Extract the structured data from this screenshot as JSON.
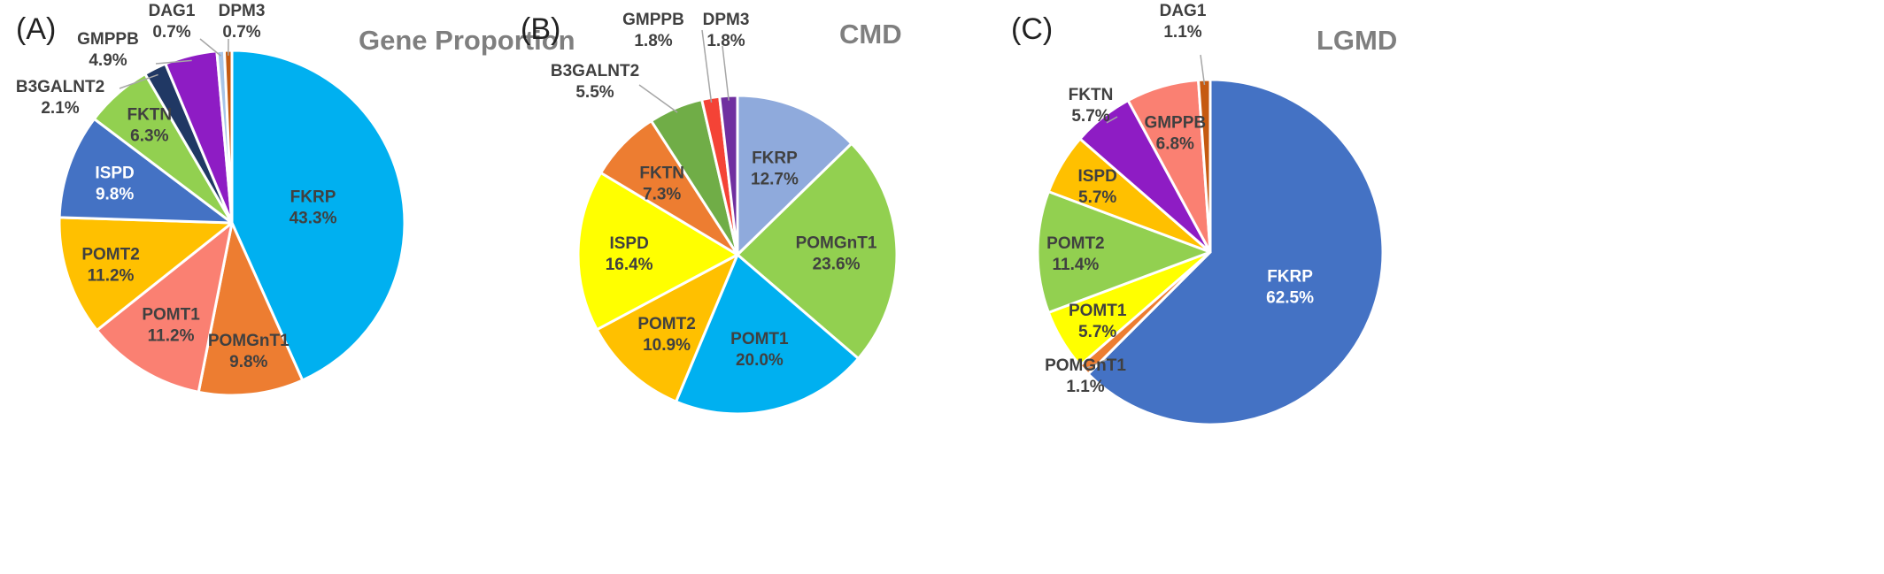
{
  "chart_data": [
    {
      "type": "pie",
      "panel": "(A)",
      "title": "Gene Proportion",
      "slices": [
        {
          "label": "FKRP",
          "value": 43.3,
          "color": "#00b0f0"
        },
        {
          "label": "POMGnT1",
          "value": 9.8,
          "color": "#ed7d31"
        },
        {
          "label": "POMT1",
          "value": 11.2,
          "color": "#fa8072"
        },
        {
          "label": "POMT2",
          "value": 11.2,
          "color": "#ffc000"
        },
        {
          "label": "ISPD",
          "value": 9.8,
          "color": "#4472c4"
        },
        {
          "label": "FKTN",
          "value": 6.3,
          "color": "#92d050"
        },
        {
          "label": "B3GALNT2",
          "value": 2.1,
          "color": "#203864"
        },
        {
          "label": "GMPPB",
          "value": 4.9,
          "color": "#8e1cc4"
        },
        {
          "label": "DAG1",
          "value": 0.7,
          "color": "#a8c5e8"
        },
        {
          "label": "DPM3",
          "value": 0.7,
          "color": "#c55a11"
        }
      ]
    },
    {
      "type": "pie",
      "panel": "(B)",
      "title": "CMD",
      "slices": [
        {
          "label": "FKRP",
          "value": 12.7,
          "color": "#8faadc"
        },
        {
          "label": "POMGnT1",
          "value": 23.6,
          "color": "#92d050"
        },
        {
          "label": "POMT1",
          "value": 20.0,
          "color": "#00b0f0"
        },
        {
          "label": "POMT2",
          "value": 10.9,
          "color": "#ffc000"
        },
        {
          "label": "ISPD",
          "value": 16.4,
          "color": "#ffff00"
        },
        {
          "label": "FKTN",
          "value": 7.3,
          "color": "#ed7d31"
        },
        {
          "label": "B3GALNT2",
          "value": 5.5,
          "color": "#70ad47"
        },
        {
          "label": "GMPPB",
          "value": 1.8,
          "color": "#f44336"
        },
        {
          "label": "DPM3",
          "value": 1.8,
          "color": "#7030a0"
        }
      ]
    },
    {
      "type": "pie",
      "panel": "(C)",
      "title": "LGMD",
      "slices": [
        {
          "label": "FKRP",
          "value": 62.5,
          "color": "#4472c4"
        },
        {
          "label": "POMGnT1",
          "value": 1.1,
          "color": "#ed7d31"
        },
        {
          "label": "POMT1",
          "value": 5.7,
          "color": "#ffff00"
        },
        {
          "label": "POMT2",
          "value": 11.4,
          "color": "#92d050"
        },
        {
          "label": "ISPD",
          "value": 5.7,
          "color": "#ffc000"
        },
        {
          "label": "FKTN",
          "value": 5.7,
          "color": "#8e1cc4"
        },
        {
          "label": "GMPPB",
          "value": 6.8,
          "color": "#fa8072"
        },
        {
          "label": "DAG1",
          "value": 1.1,
          "color": "#c55a11"
        }
      ]
    }
  ]
}
